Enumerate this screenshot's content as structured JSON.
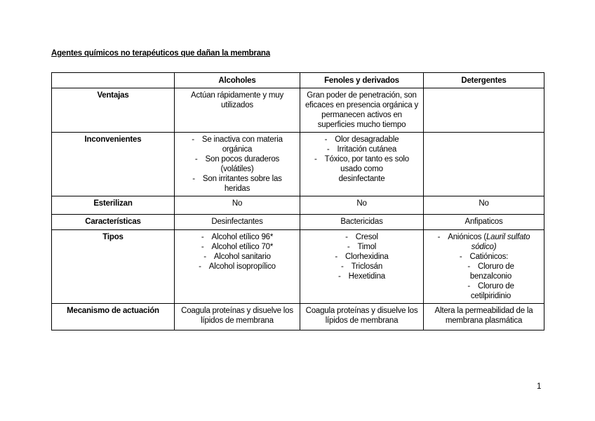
{
  "page": {
    "title": "Agentes químicos no terapéuticos que dañan la membrana",
    "page_number": "1"
  },
  "table": {
    "header": [
      "",
      "Alcoholes",
      "Fenoles y derivados",
      "Detergentes"
    ],
    "rows": [
      {
        "label": "Ventajas",
        "cells": [
          {
            "type": "text",
            "text": "Actúan rápidamente y muy\nutilizados"
          },
          {
            "type": "text",
            "text": "Gran poder de penetración, son\neficaces en presencia orgánica y\npermanecen activos en\nsuperficies mucho tiempo"
          },
          {
            "type": "empty"
          }
        ]
      },
      {
        "label": "Inconvenientes",
        "cells": [
          {
            "type": "list",
            "items": [
              {
                "text": "Se inactiva con materia\norgánica"
              },
              {
                "text": "Son pocos duraderos\n(volátiles)"
              },
              {
                "text": "Son irritantes sobre las\nheridas"
              }
            ]
          },
          {
            "type": "list",
            "items": [
              {
                "text": "Olor desagradable"
              },
              {
                "text": "Irritación cutánea"
              },
              {
                "text": "Tóxico, por tanto es solo\nusado como\ndesinfectante"
              }
            ]
          },
          {
            "type": "empty"
          }
        ]
      },
      {
        "label": "Esterilizan",
        "cells": [
          {
            "type": "text",
            "text": "No"
          },
          {
            "type": "text",
            "text": "No"
          },
          {
            "type": "text",
            "text": "No"
          }
        ]
      },
      {
        "label": "Características",
        "cells": [
          {
            "type": "text",
            "text": "Desinfectantes"
          },
          {
            "type": "text",
            "text": "Bactericidas"
          },
          {
            "type": "text",
            "text": "Anfipaticos"
          }
        ]
      },
      {
        "label": "Tipos",
        "cells": [
          {
            "type": "list",
            "items": [
              {
                "text": "Alcohol etílico 96*"
              },
              {
                "text": "Alcohol etílico 70*"
              },
              {
                "text": "Alcohol sanitario"
              },
              {
                "text": "Alcohol isopropílico"
              }
            ]
          },
          {
            "type": "list",
            "items": [
              {
                "text": "Cresol"
              },
              {
                "text": "Timol"
              },
              {
                "text": "Clorhexidina"
              },
              {
                "text": "Triclosán"
              },
              {
                "text": "Hexetidina"
              }
            ]
          },
          {
            "type": "list",
            "items": [
              {
                "runs": [
                  {
                    "text": "Aniónicos ("
                  },
                  {
                    "text": "Lauril sulfato\nsódico)",
                    "italic": true
                  }
                ]
              },
              {
                "text": "Catiónicos:",
                "children": [
                  {
                    "text": "Cloruro de\nbenzalconio"
                  },
                  {
                    "text": "Cloruro de\ncetilpiridinio"
                  }
                ]
              }
            ]
          }
        ]
      },
      {
        "label": "Mecanismo de actuación",
        "cells": [
          {
            "type": "text",
            "text": "Coagula proteínas y disuelve los\nlípidos de membrana"
          },
          {
            "type": "text",
            "text": "Coagula proteínas y disuelve los\nlípidos de membrana"
          },
          {
            "type": "text",
            "text": "Altera la permeabilidad de la\nmembrana plasmática"
          }
        ]
      }
    ]
  }
}
